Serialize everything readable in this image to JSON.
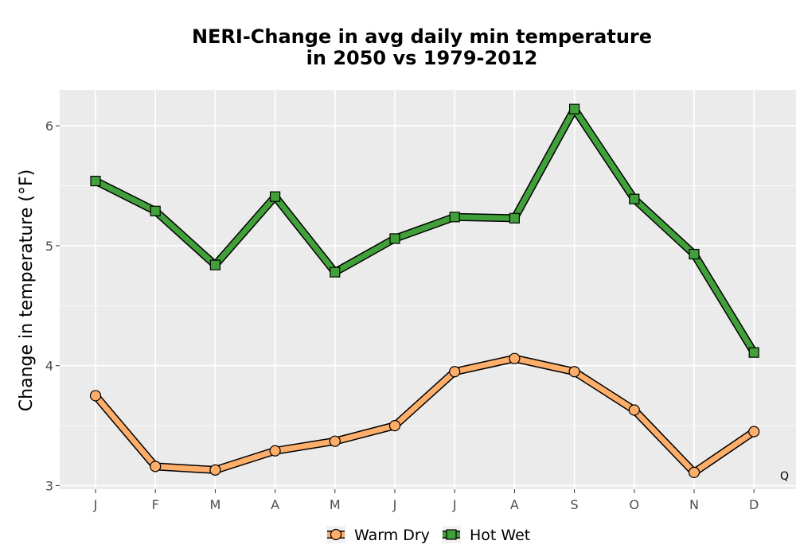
{
  "chart_data": {
    "type": "line",
    "title_line1": "NERI-Change in avg daily min temperature",
    "title_line2": "in 2050 vs 1979-2012",
    "xlabel": "",
    "ylabel": "Change in temperature (°F)",
    "categories": [
      "J",
      "F",
      "M",
      "A",
      "M",
      "J",
      "J",
      "A",
      "S",
      "O",
      "N",
      "D"
    ],
    "ylim": [
      2.97,
      6.3
    ],
    "yticks": [
      3,
      4,
      5,
      6
    ],
    "grid": true,
    "legend_position": "bottom",
    "corner_note": "Q",
    "series": [
      {
        "name": "Warm Dry",
        "marker": "circle",
        "color": "#FDAE6B",
        "values": [
          3.75,
          3.16,
          3.13,
          3.29,
          3.37,
          3.5,
          3.95,
          4.06,
          3.95,
          3.63,
          3.11,
          3.45
        ]
      },
      {
        "name": "Hot Wet",
        "marker": "square",
        "color": "#41A03A",
        "values": [
          5.54,
          5.29,
          4.84,
          5.41,
          4.78,
          5.06,
          5.24,
          5.23,
          6.14,
          5.39,
          4.93,
          4.11
        ]
      }
    ],
    "colors": {
      "panel": "#EBEBEB",
      "grid": "#FFFFFF",
      "outline": "#000000"
    }
  }
}
